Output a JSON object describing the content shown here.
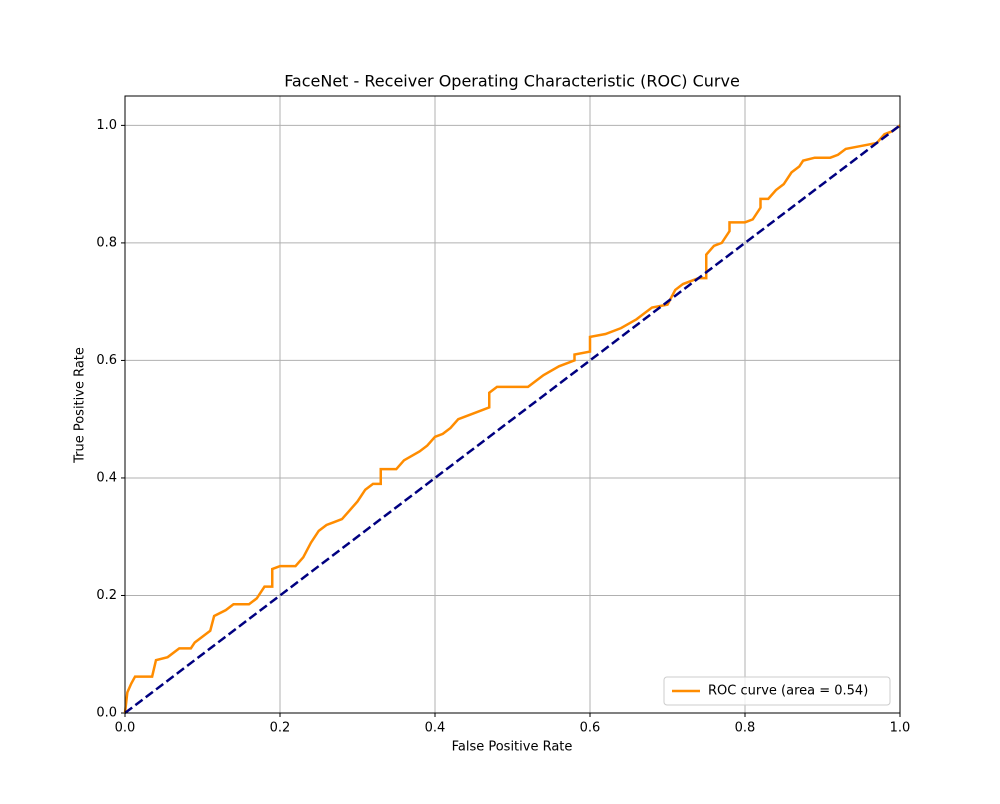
{
  "chart_data": {
    "type": "line",
    "title": "FaceNet - Receiver Operating Characteristic (ROC) Curve",
    "x_label": "False Positive Rate",
    "y_label": "True Positive Rate",
    "xlim": [
      0,
      1
    ],
    "ylim": [
      0,
      1.05
    ],
    "xticks": [
      {
        "value": 0,
        "label": "0.0"
      },
      0.2,
      0.4,
      0.6,
      0.8,
      {
        "value": 1,
        "label": "1.0"
      }
    ],
    "yticks": [
      {
        "value": 0,
        "label": "0.0"
      },
      0.2,
      0.4,
      0.6,
      0.8,
      {
        "value": 1,
        "label": "1.0"
      }
    ],
    "grid": true,
    "legend": "lower right",
    "series": [
      {
        "name": "ROC curve (area = 0.54)",
        "color": "#ff8c00",
        "x": [
          0,
          0.003,
          0.008,
          0.013,
          0.035,
          0.04,
          0.055,
          0.07,
          0.085,
          0.09,
          0.1,
          0.11,
          0.115,
          0.13,
          0.14,
          0.16,
          0.17,
          0.18,
          0.19,
          0.19,
          0.2,
          0.22,
          0.23,
          0.24,
          0.25,
          0.26,
          0.27,
          0.28,
          0.29,
          0.3,
          0.31,
          0.32,
          0.33,
          0.33,
          0.35,
          0.36,
          0.38,
          0.39,
          0.4,
          0.41,
          0.42,
          0.43,
          0.45,
          0.47,
          0.47,
          0.48,
          0.52,
          0.53,
          0.54,
          0.56,
          0.58,
          0.58,
          0.6,
          0.6,
          0.62,
          0.64,
          0.66,
          0.67,
          0.68,
          0.7,
          0.71,
          0.72,
          0.74,
          0.75,
          0.75,
          0.76,
          0.77,
          0.78,
          0.78,
          0.8,
          0.81,
          0.82,
          0.82,
          0.83,
          0.84,
          0.85,
          0.86,
          0.87,
          0.875,
          0.89,
          0.91,
          0.92,
          0.93,
          0.95,
          0.97,
          0.98,
          0.99,
          1
        ],
        "values": [
          0,
          0.035,
          0.05,
          0.062,
          0.062,
          0.09,
          0.095,
          0.11,
          0.11,
          0.12,
          0.13,
          0.14,
          0.165,
          0.175,
          0.185,
          0.185,
          0.195,
          0.215,
          0.215,
          0.245,
          0.25,
          0.25,
          0.265,
          0.29,
          0.31,
          0.32,
          0.325,
          0.33,
          0.345,
          0.36,
          0.38,
          0.39,
          0.39,
          0.415,
          0.415,
          0.43,
          0.445,
          0.455,
          0.47,
          0.475,
          0.485,
          0.5,
          0.51,
          0.52,
          0.545,
          0.555,
          0.555,
          0.565,
          0.575,
          0.59,
          0.6,
          0.61,
          0.615,
          0.64,
          0.645,
          0.655,
          0.67,
          0.68,
          0.69,
          0.695,
          0.72,
          0.73,
          0.74,
          0.74,
          0.78,
          0.795,
          0.8,
          0.82,
          0.835,
          0.835,
          0.84,
          0.86,
          0.875,
          0.875,
          0.89,
          0.9,
          0.92,
          0.93,
          0.94,
          0.945,
          0.945,
          0.95,
          0.96,
          0.965,
          0.97,
          0.985,
          0.99,
          1
        ]
      },
      {
        "color": "#000080",
        "dashed": true,
        "x": [
          0,
          1
        ],
        "values": [
          0,
          1
        ]
      }
    ]
  }
}
